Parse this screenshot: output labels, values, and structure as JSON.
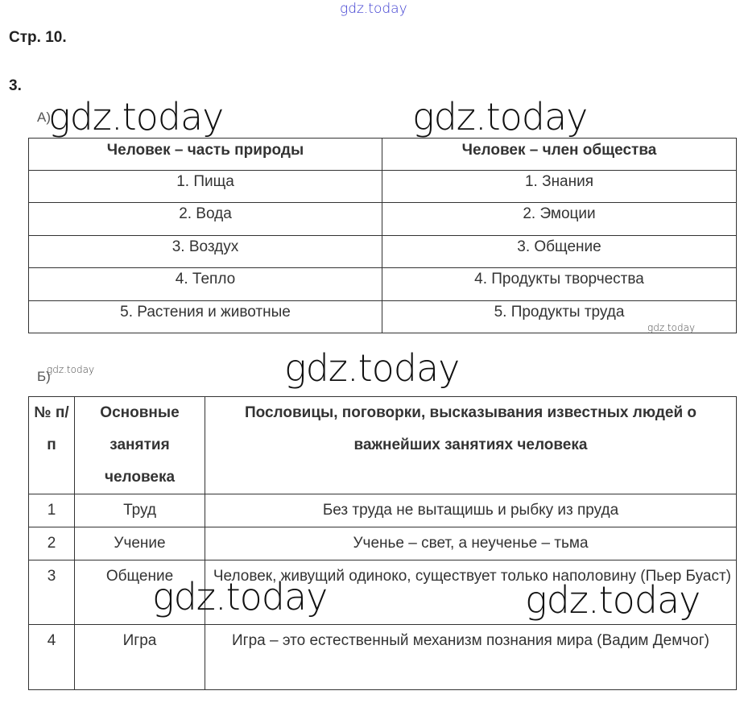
{
  "watermark": "gdz.today",
  "page_label": "Стр. 10.",
  "task_number": "3.",
  "section_a": {
    "label": "А)",
    "headers": [
      "Человек – часть природы",
      "Человек – член общества"
    ],
    "rows": [
      [
        "1. Пища",
        "1. Знания"
      ],
      [
        "2. Вода",
        "2. Эмоции"
      ],
      [
        "3. Воздух",
        "3. Общение"
      ],
      [
        "4. Тепло",
        "4. Продукты творчества"
      ],
      [
        "5. Растения и животные",
        "5. Продукты труда"
      ]
    ]
  },
  "section_b": {
    "label": "Б)",
    "headers": [
      "№ п/п",
      "Основные занятия человека",
      "Пословицы, поговорки, высказывания известных людей о важнейших занятиях человека"
    ],
    "rows": [
      [
        "1",
        "Труд",
        "Без труда не вытащишь и рыбку из пруда"
      ],
      [
        "2",
        "Учение",
        "Ученье – свет, а неученье – тьма"
      ],
      [
        "3",
        "Общение",
        "Человек, живущий одиноко, существует только наполовину (Пьер Буаст)"
      ],
      [
        "4",
        "Игра",
        "Игра – это естественный механизм познания мира (Вадим Демчог)"
      ]
    ]
  }
}
